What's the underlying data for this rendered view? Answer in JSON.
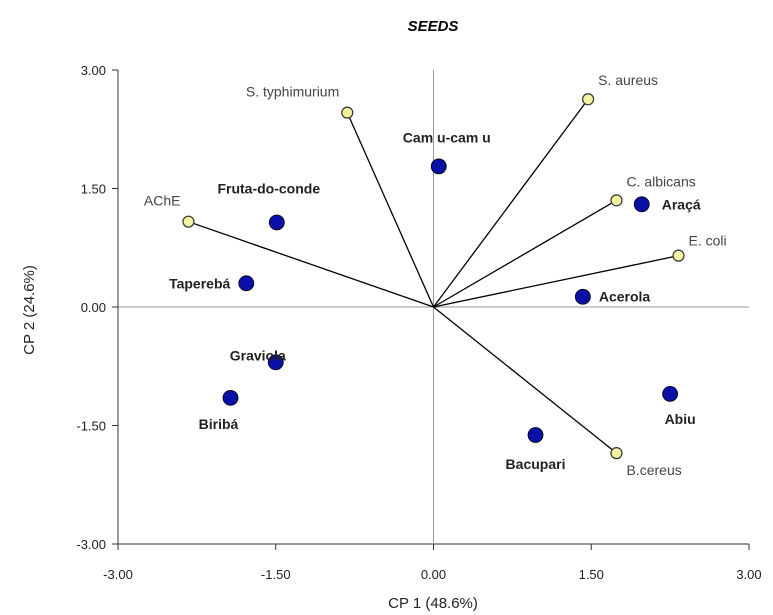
{
  "chart_data": {
    "type": "scatter",
    "title": "SEEDS",
    "xlabel": "CP 1 (48.6%)",
    "ylabel": "CP 2 (24.6%)",
    "xlim": [
      -3.0,
      3.0
    ],
    "ylim": [
      -3.0,
      3.0
    ],
    "xticks": [
      "-3.00",
      "-1.50",
      "0.00",
      "1.50",
      "3.00"
    ],
    "yticks": [
      "3.00",
      "1.50",
      "0.00",
      "-1.50",
      "-3.00"
    ],
    "grid": false,
    "zero_lines": true,
    "colors": {
      "samples": "#0a0fa8",
      "variables": "#f2f2a0",
      "vectors": "#000000"
    },
    "samples": [
      {
        "name": "Camu-camu",
        "label": "Cam u-cam u",
        "x": 0.05,
        "y": 1.78
      },
      {
        "name": "Fruta-do-conde",
        "label": "Fruta-do-conde",
        "x": -1.49,
        "y": 1.07
      },
      {
        "name": "Araçá",
        "label": "Araçá",
        "x": 1.98,
        "y": 1.3
      },
      {
        "name": "Taperebá",
        "label": "Taperebá",
        "x": -1.78,
        "y": 0.3
      },
      {
        "name": "Acerola",
        "label": "Acerola",
        "x": 1.42,
        "y": 0.13
      },
      {
        "name": "Graviola",
        "label": "Graviola",
        "x": -1.5,
        "y": -0.7
      },
      {
        "name": "Biribá",
        "label": "Biribá",
        "x": -1.93,
        "y": -1.15
      },
      {
        "name": "Abiu",
        "label": "Abiu",
        "x": 2.25,
        "y": -1.1
      },
      {
        "name": "Bacupari",
        "label": "Bacupari",
        "x": 0.97,
        "y": -1.62
      }
    ],
    "variables": [
      {
        "name": "S. typhimurium",
        "label": "S. typhimurium",
        "x": -0.82,
        "y": 2.46
      },
      {
        "name": "S. aureus",
        "label": "S. aureus",
        "x": 1.47,
        "y": 2.63
      },
      {
        "name": "C. albicans",
        "label": "C. albicans",
        "x": 1.74,
        "y": 1.35
      },
      {
        "name": "E. coli",
        "label": "E. coli",
        "x": 2.33,
        "y": 0.65
      },
      {
        "name": "AChE",
        "label": "AChE",
        "x": -2.33,
        "y": 1.08
      },
      {
        "name": "B. cereus",
        "label": "B.cereus",
        "x": 1.74,
        "y": -1.85
      }
    ]
  }
}
